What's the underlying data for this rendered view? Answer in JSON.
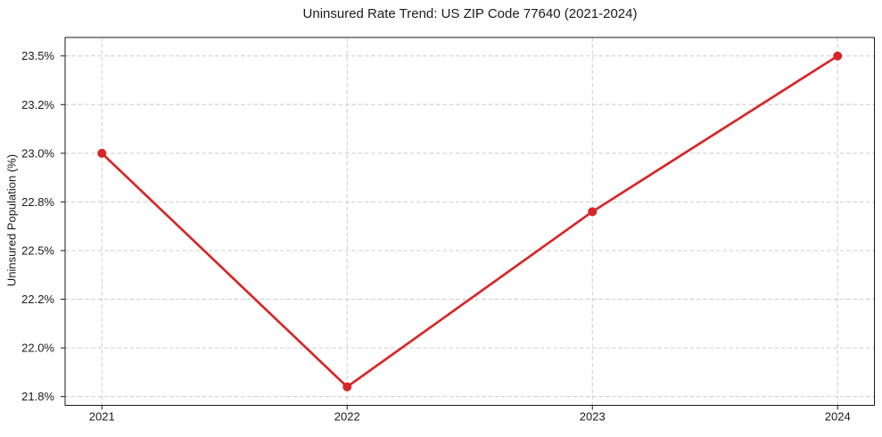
{
  "chart_data": {
    "type": "line",
    "title": "Uninsured Rate Trend: US ZIP Code 77640 (2021-2024)",
    "xlabel": "",
    "ylabel": "Uninsured Population (%)",
    "x": [
      2021,
      2022,
      2023,
      2024
    ],
    "categories": [
      "2021",
      "2022",
      "2023",
      "2024"
    ],
    "values": [
      23.0,
      21.8,
      22.7,
      23.5
    ],
    "x_tick_labels": [
      "2021",
      "2022",
      "2023",
      "2024"
    ],
    "y_ticks": [
      21.75,
      22.0,
      22.25,
      22.5,
      22.75,
      23.0,
      23.25,
      23.5
    ],
    "y_tick_labels": [
      "21.8%",
      "22.0%",
      "22.2%",
      "22.5%",
      "22.8%",
      "23.0%",
      "23.2%",
      "23.5%"
    ],
    "xlim": [
      2020.85,
      2024.15
    ],
    "ylim": [
      21.705,
      23.595
    ],
    "grid": true,
    "legend": null,
    "line_color": "#d62728",
    "marker_color": "#d62728",
    "grid_color": "#cccccc",
    "axis_color": "#1a1a1a",
    "text_color": "#1a1a1a",
    "background_color": "#ffffff"
  }
}
